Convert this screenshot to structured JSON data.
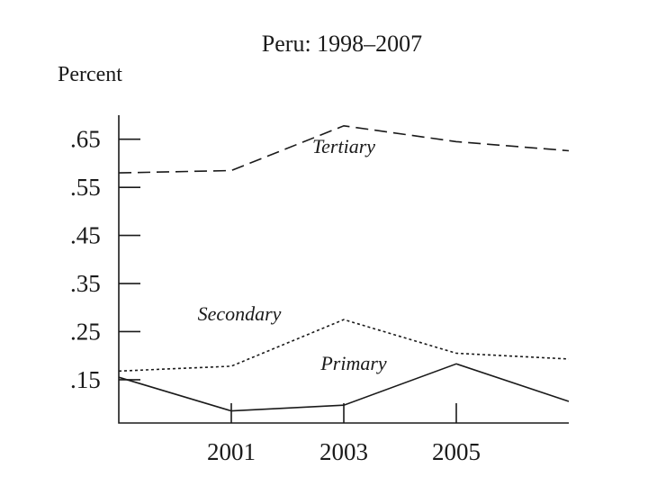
{
  "chart_data": {
    "type": "line",
    "title": "Peru: 1998–2007",
    "ylabel": "Percent",
    "xlabel": "",
    "xlim": [
      1999,
      2007
    ],
    "ylim": [
      0.06,
      0.7
    ],
    "yticks": [
      ".65",
      ".55",
      ".45",
      ".35",
      ".25",
      ".15"
    ],
    "ytick_values": [
      0.65,
      0.55,
      0.45,
      0.35,
      0.25,
      0.15
    ],
    "xticks": [
      "2001",
      "2003",
      "2005"
    ],
    "xtick_values": [
      2001,
      2003,
      2005
    ],
    "x": [
      1999,
      2001,
      2003,
      2005,
      2007
    ],
    "series": [
      {
        "name": "Tertiary",
        "style": "dashed",
        "values": [
          0.58,
          0.585,
          0.678,
          0.645,
          0.626
        ]
      },
      {
        "name": "Secondary",
        "style": "dotted",
        "values": [
          0.168,
          0.178,
          0.275,
          0.205,
          0.193
        ]
      },
      {
        "name": "Primary",
        "style": "solid",
        "values": [
          0.155,
          0.085,
          0.097,
          0.183,
          0.105
        ]
      }
    ],
    "colors": {
      "ink": "#1a1a1a",
      "background": "#ffffff"
    }
  }
}
